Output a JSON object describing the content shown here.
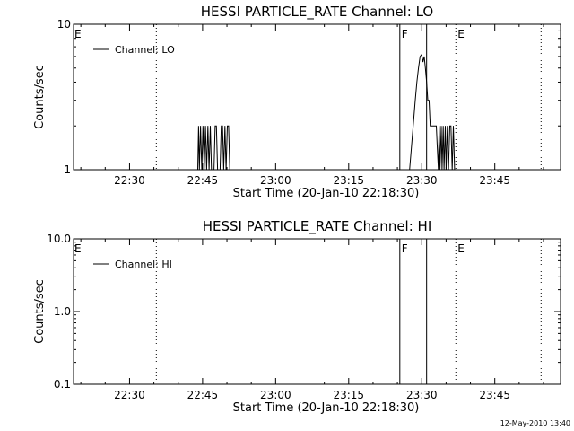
{
  "chart_data": [
    {
      "type": "line",
      "title": "HESSI PARTICLE_RATE Channel: LO",
      "xlabel": "Start Time (20-Jan-10 22:18:30)",
      "ylabel": "Counts/sec",
      "yscale": "log",
      "ylim": [
        1,
        10
      ],
      "ytick_labels": [
        "10",
        "1"
      ],
      "ytick_values": [
        10,
        1
      ],
      "xlim": [
        "22:18:30",
        "23:58:30"
      ],
      "xtick_labels": [
        "22:30",
        "22:45",
        "23:00",
        "23:15",
        "23:30",
        "23:45"
      ],
      "legend": {
        "placement": "top-left",
        "entries": [
          "Channel: LO"
        ]
      },
      "flags": [
        {
          "label": "E",
          "time": "22:18:30",
          "style": "none"
        },
        {
          "label": "",
          "time": "22:35:30",
          "style": "dotted"
        },
        {
          "label": "F",
          "time": "23:25:30",
          "style": "solid"
        },
        {
          "label": "",
          "time": "23:31:00",
          "style": "solid"
        },
        {
          "label": "E",
          "time": "23:37:00",
          "style": "dotted"
        },
        {
          "label": "",
          "time": "23:54:30",
          "style": "dotted"
        }
      ],
      "series": [
        {
          "name": "Channel: LO",
          "segments": [
            [
              [
                "22:44:00",
                1
              ],
              [
                "22:44:10",
                2
              ],
              [
                "22:44:20",
                1
              ],
              [
                "22:44:35",
                2
              ],
              [
                "22:44:50",
                1
              ],
              [
                "22:45:05",
                2
              ],
              [
                "22:45:20",
                1
              ],
              [
                "22:45:35",
                2
              ],
              [
                "22:45:50",
                1
              ],
              [
                "22:46:05",
                2
              ],
              [
                "22:46:20",
                1
              ],
              [
                "22:46:35",
                2
              ],
              [
                "22:46:50",
                1
              ],
              [
                "22:47:05",
                1
              ],
              [
                "22:47:20",
                1
              ],
              [
                "22:47:35",
                2
              ],
              [
                "22:47:50",
                2
              ],
              [
                "22:48:05",
                1
              ],
              [
                "22:48:20",
                1
              ],
              [
                "22:48:35",
                1
              ],
              [
                "22:48:50",
                2
              ],
              [
                "22:49:05",
                2
              ],
              [
                "22:49:20",
                1
              ],
              [
                "22:49:35",
                2
              ],
              [
                "22:49:50",
                1
              ],
              [
                "22:50:05",
                2
              ],
              [
                "22:50:20",
                2
              ],
              [
                "22:50:35",
                1
              ],
              [
                "22:50:50",
                1
              ]
            ],
            [
              [
                "23:27:30",
                1
              ],
              [
                "23:28:15",
                2
              ],
              [
                "23:28:40",
                3
              ],
              [
                "23:29:00",
                4
              ],
              [
                "23:29:20",
                5
              ],
              [
                "23:29:40",
                6
              ],
              [
                "23:30:00",
                6.2
              ],
              [
                "23:30:15",
                5.5
              ],
              [
                "23:30:30",
                6
              ],
              [
                "23:30:45",
                5
              ],
              [
                "23:31:00",
                4
              ],
              [
                "23:31:15",
                3
              ],
              [
                "23:31:30",
                3
              ],
              [
                "23:31:45",
                2
              ],
              [
                "23:32:00",
                2
              ],
              [
                "23:32:15",
                2
              ],
              [
                "23:32:30",
                2
              ],
              [
                "23:32:45",
                2
              ],
              [
                "23:33:00",
                2
              ],
              [
                "23:33:10",
                1.5
              ],
              [
                "23:33:25",
                1
              ],
              [
                "23:33:35",
                2
              ],
              [
                "23:33:45",
                1
              ],
              [
                "23:34:00",
                2
              ],
              [
                "23:34:10",
                1
              ],
              [
                "23:34:25",
                2
              ],
              [
                "23:34:35",
                1
              ],
              [
                "23:34:50",
                2
              ],
              [
                "23:35:00",
                1
              ],
              [
                "23:35:15",
                2
              ],
              [
                "23:35:30",
                1
              ],
              [
                "23:35:45",
                2
              ],
              [
                "23:36:00",
                2
              ],
              [
                "23:36:15",
                1
              ],
              [
                "23:36:30",
                2
              ],
              [
                "23:36:45",
                1
              ]
            ]
          ]
        }
      ]
    },
    {
      "type": "line",
      "title": "HESSI PARTICLE_RATE Channel: HI",
      "xlabel": "Start Time (20-Jan-10 22:18:30)",
      "ylabel": "Counts/sec",
      "yscale": "log",
      "ylim": [
        0.1,
        10
      ],
      "ytick_labels": [
        "10.0",
        "1.0",
        "0.1"
      ],
      "ytick_values": [
        10,
        1,
        0.1
      ],
      "xlim": [
        "22:18:30",
        "23:58:30"
      ],
      "xtick_labels": [
        "22:30",
        "22:45",
        "23:00",
        "23:15",
        "23:30",
        "23:45"
      ],
      "legend": {
        "placement": "top-left",
        "entries": [
          "Channel: HI"
        ]
      },
      "flags": [
        {
          "label": "E",
          "time": "22:18:30",
          "style": "none"
        },
        {
          "label": "",
          "time": "22:35:30",
          "style": "dotted"
        },
        {
          "label": "F",
          "time": "23:25:30",
          "style": "solid"
        },
        {
          "label": "",
          "time": "23:31:00",
          "style": "solid"
        },
        {
          "label": "E",
          "time": "23:37:00",
          "style": "dotted"
        },
        {
          "label": "",
          "time": "23:54:30",
          "style": "dotted"
        }
      ],
      "series": [
        {
          "name": "Channel: HI",
          "segments": []
        }
      ]
    }
  ],
  "footer": {
    "timestamp": "12-May-2010 13:40"
  }
}
